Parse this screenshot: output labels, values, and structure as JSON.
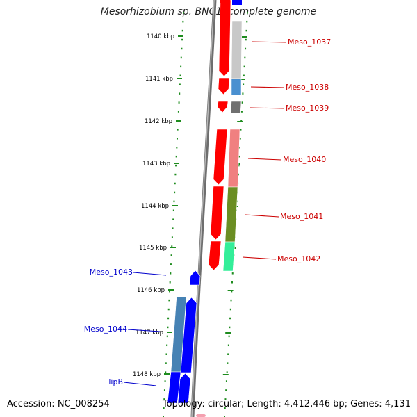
{
  "title": "Mesorhizobium sp. BNC1, complete genome",
  "accession_text": "Accession: NC_008254",
  "summary_text": "Topology: circular; Length: 4,412,446 bp; Genes: 4,131",
  "colors": {
    "backbone": "#8c8c8c",
    "ruler_dots": "#1e8c1e",
    "forward_strand": "#ff0000",
    "reverse_strand": "#0000ff",
    "forward_label": "#cc0000",
    "reverse_label": "#0000cc"
  },
  "ruler_ticks": [
    {
      "label": "1140 kbp"
    },
    {
      "label": "1141 kbp"
    },
    {
      "label": "1142 kbp"
    },
    {
      "label": "1143 kbp"
    },
    {
      "label": "1144 kbp"
    },
    {
      "label": "1145 kbp"
    },
    {
      "label": "1146 kbp"
    },
    {
      "label": "1147 kbp"
    },
    {
      "label": "1148 kbp"
    }
  ],
  "gene_labels": [
    {
      "name": "Meso_1037",
      "strand": "forward"
    },
    {
      "name": "Meso_1038",
      "strand": "forward"
    },
    {
      "name": "Meso_1039",
      "strand": "forward"
    },
    {
      "name": "Meso_1040",
      "strand": "forward"
    },
    {
      "name": "Meso_1041",
      "strand": "forward"
    },
    {
      "name": "Meso_1042",
      "strand": "forward"
    },
    {
      "name": "Meso_1043",
      "strand": "reverse"
    },
    {
      "name": "Meso_1044",
      "strand": "reverse"
    },
    {
      "name": "lipB",
      "strand": "reverse"
    }
  ],
  "function_bars": [
    {
      "gene": "Meso_1037",
      "color": "#c8c8c8"
    },
    {
      "gene": "Meso_1038",
      "color": "#4a90d0"
    },
    {
      "gene": "Meso_1039",
      "color": "#707070"
    },
    {
      "gene": "Meso_1040",
      "color": "#f08080"
    },
    {
      "gene": "Meso_1041",
      "color": "#6b8e23"
    },
    {
      "gene": "Meso_1042",
      "color": "#33ee99"
    },
    {
      "gene": "Meso_1044",
      "color": "#4682b4"
    },
    {
      "gene": "lipB",
      "color": "#0000ff"
    }
  ]
}
